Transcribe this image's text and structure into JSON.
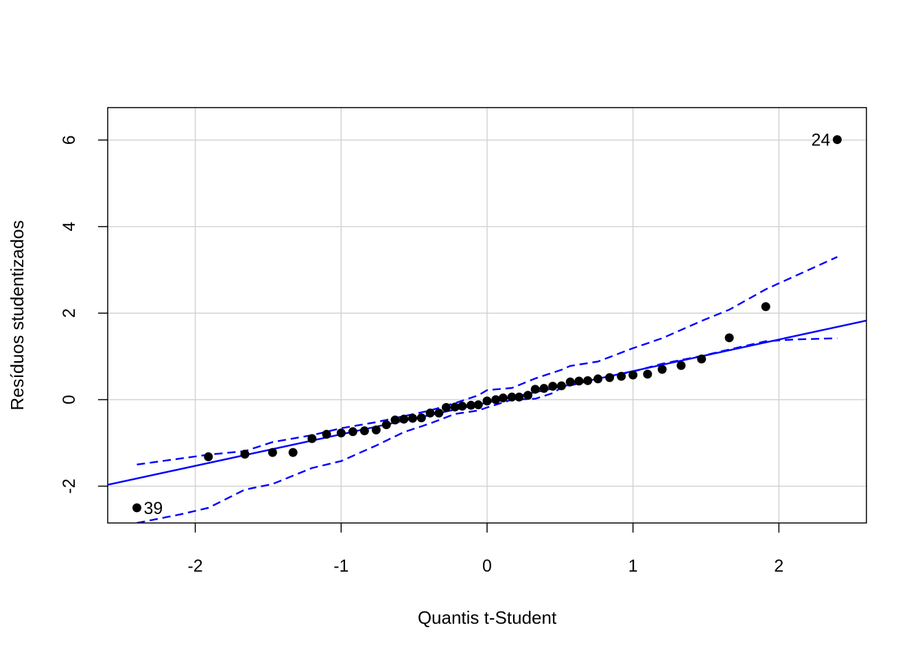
{
  "chart_data": {
    "type": "scatter",
    "title": "",
    "xlabel": "Quantis t-Student",
    "ylabel": "Resíduos studentizados",
    "xlim": [
      -2.6,
      2.6
    ],
    "ylim": [
      -2.85,
      6.75
    ],
    "xticks": [
      -2,
      -1,
      0,
      1,
      2
    ],
    "yticks": [
      -2,
      0,
      2,
      4,
      6
    ],
    "grid": true,
    "colors": {
      "points": "#000000",
      "lines": "#0000ff",
      "grid": "#d3d3d3"
    },
    "points": [
      {
        "x": -2.4,
        "y": -2.5
      },
      {
        "x": -1.91,
        "y": -1.32
      },
      {
        "x": -1.66,
        "y": -1.26
      },
      {
        "x": -1.47,
        "y": -1.22
      },
      {
        "x": -1.33,
        "y": -1.22
      },
      {
        "x": -1.2,
        "y": -0.9
      },
      {
        "x": -1.1,
        "y": -0.8
      },
      {
        "x": -1.0,
        "y": -0.77
      },
      {
        "x": -0.92,
        "y": -0.74
      },
      {
        "x": -0.84,
        "y": -0.72
      },
      {
        "x": -0.76,
        "y": -0.7
      },
      {
        "x": -0.69,
        "y": -0.58
      },
      {
        "x": -0.63,
        "y": -0.47
      },
      {
        "x": -0.57,
        "y": -0.45
      },
      {
        "x": -0.51,
        "y": -0.43
      },
      {
        "x": -0.45,
        "y": -0.42
      },
      {
        "x": -0.39,
        "y": -0.31
      },
      {
        "x": -0.33,
        "y": -0.31
      },
      {
        "x": -0.28,
        "y": -0.18
      },
      {
        "x": -0.22,
        "y": -0.17
      },
      {
        "x": -0.17,
        "y": -0.15
      },
      {
        "x": -0.11,
        "y": -0.13
      },
      {
        "x": -0.06,
        "y": -0.12
      },
      {
        "x": 0.0,
        "y": -0.03
      },
      {
        "x": 0.06,
        "y": 0.0
      },
      {
        "x": 0.11,
        "y": 0.04
      },
      {
        "x": 0.17,
        "y": 0.06
      },
      {
        "x": 0.22,
        "y": 0.06
      },
      {
        "x": 0.28,
        "y": 0.1
      },
      {
        "x": 0.33,
        "y": 0.24
      },
      {
        "x": 0.39,
        "y": 0.26
      },
      {
        "x": 0.45,
        "y": 0.31
      },
      {
        "x": 0.51,
        "y": 0.32
      },
      {
        "x": 0.57,
        "y": 0.41
      },
      {
        "x": 0.63,
        "y": 0.43
      },
      {
        "x": 0.69,
        "y": 0.44
      },
      {
        "x": 0.76,
        "y": 0.48
      },
      {
        "x": 0.84,
        "y": 0.51
      },
      {
        "x": 0.92,
        "y": 0.54
      },
      {
        "x": 1.0,
        "y": 0.57
      },
      {
        "x": 1.1,
        "y": 0.59
      },
      {
        "x": 1.2,
        "y": 0.7
      },
      {
        "x": 1.33,
        "y": 0.79
      },
      {
        "x": 1.47,
        "y": 0.94
      },
      {
        "x": 1.66,
        "y": 1.43
      },
      {
        "x": 1.91,
        "y": 2.15
      },
      {
        "x": 2.4,
        "y": 6.01
      }
    ],
    "reference_line": {
      "intercept": -0.07,
      "slope": 0.73
    },
    "envelope_upper": [
      {
        "x": -2.4,
        "y": -1.5
      },
      {
        "x": -1.91,
        "y": -1.27
      },
      {
        "x": -1.66,
        "y": -1.19
      },
      {
        "x": -1.47,
        "y": -0.98
      },
      {
        "x": -1.2,
        "y": -0.82
      },
      {
        "x": -1.0,
        "y": -0.66
      },
      {
        "x": -0.76,
        "y": -0.52
      },
      {
        "x": -0.57,
        "y": -0.38
      },
      {
        "x": -0.39,
        "y": -0.25
      },
      {
        "x": -0.22,
        "y": -0.08
      },
      {
        "x": -0.06,
        "y": 0.1
      },
      {
        "x": 0.0,
        "y": 0.22
      },
      {
        "x": 0.17,
        "y": 0.27
      },
      {
        "x": 0.33,
        "y": 0.49
      },
      {
        "x": 0.51,
        "y": 0.69
      },
      {
        "x": 0.57,
        "y": 0.78
      },
      {
        "x": 0.76,
        "y": 0.88
      },
      {
        "x": 1.0,
        "y": 1.19
      },
      {
        "x": 1.2,
        "y": 1.42
      },
      {
        "x": 1.47,
        "y": 1.82
      },
      {
        "x": 1.66,
        "y": 2.08
      },
      {
        "x": 1.91,
        "y": 2.55
      },
      {
        "x": 2.4,
        "y": 3.3
      }
    ],
    "envelope_lower": [
      {
        "x": -2.4,
        "y": -2.85
      },
      {
        "x": -2.1,
        "y": -2.65
      },
      {
        "x": -1.91,
        "y": -2.5
      },
      {
        "x": -1.66,
        "y": -2.08
      },
      {
        "x": -1.47,
        "y": -1.95
      },
      {
        "x": -1.2,
        "y": -1.58
      },
      {
        "x": -1.0,
        "y": -1.42
      },
      {
        "x": -0.76,
        "y": -1.06
      },
      {
        "x": -0.57,
        "y": -0.75
      },
      {
        "x": -0.39,
        "y": -0.55
      },
      {
        "x": -0.22,
        "y": -0.33
      },
      {
        "x": -0.06,
        "y": -0.25
      },
      {
        "x": 0.0,
        "y": -0.18
      },
      {
        "x": 0.17,
        "y": 0.0
      },
      {
        "x": 0.33,
        "y": 0.02
      },
      {
        "x": 0.45,
        "y": 0.15
      },
      {
        "x": 0.51,
        "y": 0.28
      },
      {
        "x": 0.76,
        "y": 0.48
      },
      {
        "x": 1.0,
        "y": 0.65
      },
      {
        "x": 1.2,
        "y": 0.83
      },
      {
        "x": 1.47,
        "y": 1.01
      },
      {
        "x": 1.66,
        "y": 1.16
      },
      {
        "x": 1.91,
        "y": 1.35
      },
      {
        "x": 2.1,
        "y": 1.39
      },
      {
        "x": 2.4,
        "y": 1.42
      }
    ],
    "annotations": [
      {
        "text": "24",
        "x": 2.4,
        "y": 6.01,
        "side": "left"
      },
      {
        "text": "39",
        "x": -2.4,
        "y": -2.5,
        "side": "right"
      }
    ]
  }
}
